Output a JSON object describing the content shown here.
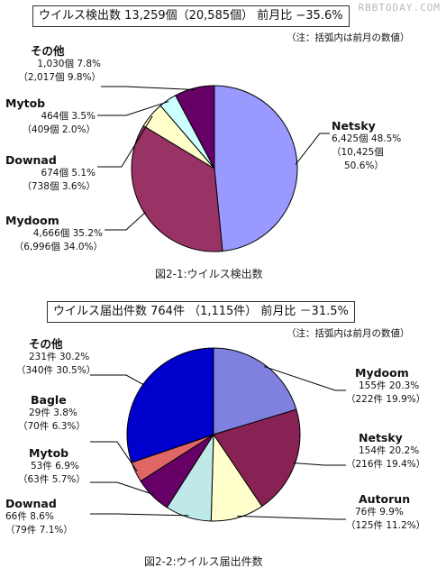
{
  "watermark": "RBBTODAY.COM",
  "chart_data": [
    {
      "type": "pie",
      "title": "ウイルス検出数 13,259個（20,585個） 前月比 −35.6%",
      "note": "（注：括弧内は前月の数値）",
      "caption": "図2-1:ウイルス検出数",
      "slices": [
        {
          "name": "Netsky",
          "line1": "6,425個 48.5%",
          "line2": "（10,425個",
          "line3": "50.6%）",
          "value": 48.5,
          "color": "#9999ff"
        },
        {
          "name": "Mydoom",
          "line1": "4,666個 35.2%",
          "line2": "（6,996個 34.0%）",
          "value": 35.2,
          "color": "#993366"
        },
        {
          "name": "Downad",
          "line1": "674個 5.1%",
          "line2": "（738個 3.6%）",
          "value": 5.1,
          "color": "#ffffcc"
        },
        {
          "name": "Mytob",
          "line1": "464個 3.5%",
          "line2": "（409個 2.0%）",
          "value": 3.5,
          "color": "#ccffff"
        },
        {
          "name": "その他",
          "line1": "1,030個 7.8%",
          "line2": "（2,017個 9.8%）",
          "value": 7.8,
          "color": "#660066"
        }
      ]
    },
    {
      "type": "pie",
      "title": "ウイルス届出件数 764件 （1,115件） 前月比 －31.5%",
      "note": "（注：括弧内は前月の数値）",
      "caption": "図2-2:ウイルス届出件数",
      "slices": [
        {
          "name": "Mydoom",
          "line1": "155件 20.3%",
          "line2": "（222件 19.9%）",
          "value": 20.3,
          "color": "#8080e0"
        },
        {
          "name": "Netsky",
          "line1": "154件 20.2%",
          "line2": "（216件 19.4%）",
          "value": 20.2,
          "color": "#882255"
        },
        {
          "name": "Autorun",
          "line1": "76件 9.9%",
          "line2": "（125件 11.2%）",
          "value": 9.9,
          "color": "#ffffcc"
        },
        {
          "name": "Downad",
          "line1": "66件 8.6%",
          "line2": "（79件 7.1%）",
          "value": 8.6,
          "color": "#bfe8e8"
        },
        {
          "name": "Mytob",
          "line1": "53件 6.9%",
          "line2": "（63件 5.7%）",
          "value": 6.9,
          "color": "#660066"
        },
        {
          "name": "Bagle",
          "line1": "29件 3.8%",
          "line2": "（70件 6.3%）",
          "value": 3.8,
          "color": "#e06666"
        },
        {
          "name": "その他",
          "line1": "231件 30.2%",
          "line2": "（340件 30.5%）",
          "value": 30.2,
          "color": "#0000cc"
        }
      ]
    }
  ]
}
